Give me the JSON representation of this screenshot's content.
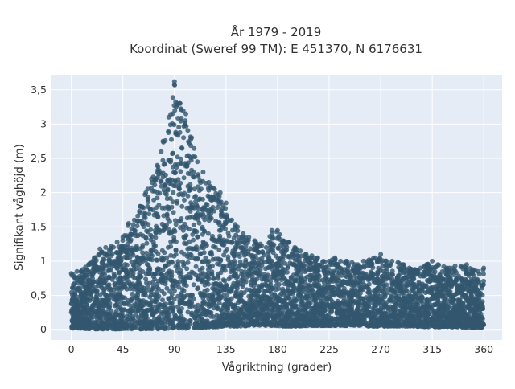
{
  "chart_data": {
    "type": "scatter",
    "title_line1": "År 1979 - 2019",
    "title_line2": "Koordinat (Sweref 99 TM): E 451370, N 6176631",
    "xlabel": "Vågriktning (grader)",
    "ylabel": "Signifikant våghöjd (m)",
    "xlim": [
      -18,
      376
    ],
    "ylim": [
      -0.15,
      3.72
    ],
    "grid": true,
    "x_ticks": [
      {
        "value": 0,
        "label": "0"
      },
      {
        "value": 45,
        "label": "45"
      },
      {
        "value": 90,
        "label": "90"
      },
      {
        "value": 135,
        "label": "135"
      },
      {
        "value": 180,
        "label": "180"
      },
      {
        "value": 225,
        "label": "225"
      },
      {
        "value": 270,
        "label": "270"
      },
      {
        "value": 315,
        "label": "315"
      },
      {
        "value": 360,
        "label": "360"
      }
    ],
    "y_ticks": [
      {
        "value": 0,
        "label": "0"
      },
      {
        "value": 0.5,
        "label": "0,5"
      },
      {
        "value": 1,
        "label": "1"
      },
      {
        "value": 1.5,
        "label": "1,5"
      },
      {
        "value": 2,
        "label": "2"
      },
      {
        "value": 2.5,
        "label": "2,5"
      },
      {
        "value": 3,
        "label": "3"
      },
      {
        "value": 3.5,
        "label": "3,5"
      }
    ],
    "series": [
      {
        "color": "#32566e",
        "marker_opacity": 0.8,
        "x": [
          0,
          5,
          10,
          15,
          20,
          25,
          30,
          35,
          40,
          45,
          50,
          55,
          60,
          65,
          70,
          75,
          80,
          85,
          90,
          95,
          100,
          105,
          110,
          115,
          120,
          125,
          130,
          135,
          140,
          145,
          150,
          155,
          160,
          165,
          170,
          175,
          180,
          185,
          190,
          195,
          200,
          205,
          210,
          215,
          220,
          225,
          230,
          235,
          240,
          245,
          250,
          255,
          260,
          265,
          270,
          275,
          280,
          285,
          290,
          295,
          300,
          305,
          310,
          315,
          320,
          325,
          330,
          335,
          340,
          345,
          350,
          355,
          360
        ],
        "y_max": [
          0.82,
          0.85,
          0.88,
          0.95,
          1.05,
          1.18,
          1.2,
          1.22,
          1.28,
          1.35,
          1.55,
          1.6,
          1.8,
          2.0,
          2.2,
          2.4,
          2.75,
          3.1,
          3.62,
          3.3,
          3.15,
          2.8,
          2.45,
          2.3,
          2.15,
          2.05,
          2.0,
          1.85,
          1.6,
          1.5,
          1.4,
          1.35,
          1.3,
          1.25,
          1.2,
          1.45,
          1.45,
          1.3,
          1.28,
          1.2,
          1.15,
          1.1,
          1.08,
          1.05,
          1.0,
          1.0,
          1.05,
          1.0,
          1.0,
          0.98,
          0.95,
          1.0,
          1.02,
          1.05,
          1.1,
          1.0,
          1.0,
          0.98,
          0.95,
          0.9,
          0.88,
          0.9,
          0.95,
          1.0,
          0.95,
          0.92,
          0.9,
          0.93,
          0.92,
          0.95,
          0.88,
          0.85,
          0.9
        ],
        "y_min": [
          0.02,
          0.02,
          0.02,
          0.01,
          0.01,
          0.01,
          0.01,
          0.01,
          0.01,
          0.01,
          0.01,
          0.01,
          0.01,
          0.01,
          0.01,
          0.01,
          0.01,
          0.02,
          0.02,
          0.02,
          0.02,
          0.02,
          0.03,
          0.03,
          0.04,
          0.04,
          0.04,
          0.05,
          0.05,
          0.05,
          0.05,
          0.06,
          0.06,
          0.06,
          0.06,
          0.06,
          0.05,
          0.05,
          0.05,
          0.05,
          0.05,
          0.06,
          0.06,
          0.06,
          0.06,
          0.06,
          0.06,
          0.06,
          0.06,
          0.06,
          0.06,
          0.06,
          0.05,
          0.05,
          0.05,
          0.05,
          0.05,
          0.05,
          0.05,
          0.05,
          0.05,
          0.04,
          0.04,
          0.04,
          0.04,
          0.04,
          0.04,
          0.04,
          0.04,
          0.03,
          0.03,
          0.03,
          0.03
        ]
      }
    ]
  }
}
